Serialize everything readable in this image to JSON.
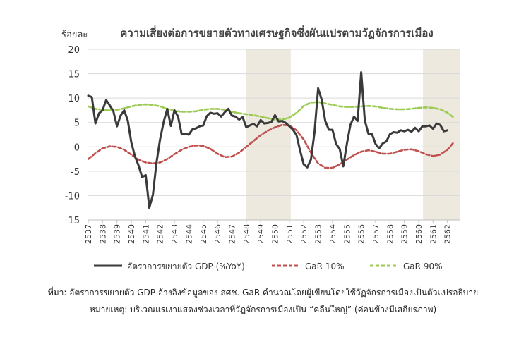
{
  "chart_data": {
    "type": "line",
    "title": "ความเสี่ยงต่อการขยายตัวทางเศรษฐกิจซึ่งผันแปรตามวัฏจักรการเมือง",
    "ylabel": "ร้อยละ",
    "xlabel": "",
    "ylim": [
      -15,
      20
    ],
    "yticks": [
      -15,
      -10,
      -5,
      0,
      5,
      10,
      15,
      20
    ],
    "xlim": [
      2537,
      2562.9
    ],
    "xticks": [
      "2537",
      "2538",
      "2539",
      "2540",
      "2541",
      "2542",
      "2543",
      "2544",
      "2545",
      "2546",
      "2547",
      "2548",
      "2549",
      "2550",
      "2551",
      "2552",
      "2553",
      "2554",
      "2555",
      "2556",
      "2557",
      "2558",
      "2559",
      "2560",
      "2561",
      "2562"
    ],
    "grid": "horizontal",
    "legend": "bottom",
    "shaded_periods": [
      [
        2548.0,
        2551.1
      ],
      [
        2560.3,
        2562.9
      ]
    ],
    "series": [
      {
        "name": "อัตราการขยายตัว GDP (%YoY)",
        "color": "#3a3a3a",
        "style": "solid",
        "x": [
          2537.0,
          2537.25,
          2537.5,
          2537.75,
          2538.0,
          2538.25,
          2538.5,
          2538.75,
          2539.0,
          2539.25,
          2539.5,
          2539.75,
          2540.0,
          2540.25,
          2540.5,
          2540.75,
          2541.0,
          2541.25,
          2541.5,
          2541.75,
          2542.0,
          2542.25,
          2542.5,
          2542.75,
          2543.0,
          2543.25,
          2543.5,
          2543.75,
          2544.0,
          2544.25,
          2544.5,
          2544.75,
          2545.0,
          2545.25,
          2545.5,
          2545.75,
          2546.0,
          2546.25,
          2546.5,
          2546.75,
          2547.0,
          2547.25,
          2547.5,
          2547.75,
          2548.0,
          2548.25,
          2548.5,
          2548.75,
          2549.0,
          2549.25,
          2549.5,
          2549.75,
          2550.0,
          2550.25,
          2550.5,
          2550.75,
          2551.0,
          2551.25,
          2551.5,
          2551.75,
          2552.0,
          2552.25,
          2552.5,
          2552.75,
          2553.0,
          2553.25,
          2553.5,
          2553.75,
          2554.0,
          2554.25,
          2554.5,
          2554.75,
          2555.0,
          2555.25,
          2555.5,
          2555.75,
          2556.0,
          2556.25,
          2556.5,
          2556.75,
          2557.0,
          2557.25,
          2557.5,
          2557.75,
          2558.0,
          2558.25,
          2558.5,
          2558.75,
          2559.0,
          2559.25,
          2559.5,
          2559.75,
          2560.0,
          2560.25,
          2560.5,
          2560.75,
          2561.0,
          2561.25,
          2561.5,
          2561.75,
          2562.0
        ],
        "y": [
          10.5,
          10.2,
          4.8,
          6.9,
          7.5,
          9.6,
          8.5,
          7.3,
          4.2,
          6.4,
          7.5,
          5.4,
          0.9,
          -1.9,
          -3.8,
          -6.2,
          -5.8,
          -12.5,
          -9.8,
          -3.2,
          1.5,
          5.1,
          7.8,
          4.3,
          7.5,
          6.2,
          2.6,
          2.7,
          2.5,
          3.6,
          3.8,
          4.2,
          4.4,
          6.3,
          7.0,
          6.8,
          6.9,
          6.2,
          7.1,
          7.8,
          6.4,
          6.2,
          5.6,
          6.1,
          4.0,
          4.4,
          4.7,
          4.2,
          5.5,
          4.8,
          4.9,
          5.1,
          6.5,
          5.2,
          5.3,
          4.9,
          4.2,
          3.5,
          2.4,
          -0.8,
          -3.6,
          -4.2,
          -2.6,
          3.0,
          12.0,
          9.7,
          5.3,
          3.5,
          3.5,
          0.6,
          -0.4,
          -4.0,
          0.6,
          4.5,
          6.2,
          5.3,
          15.3,
          5.4,
          2.7,
          2.6,
          0.6,
          -0.3,
          0.7,
          1.1,
          2.6,
          3.0,
          2.9,
          3.4,
          3.2,
          3.5,
          3.1,
          3.9,
          3.2,
          4.2,
          4.2,
          4.4,
          3.7,
          4.8,
          4.5,
          3.2,
          3.4
        ]
      },
      {
        "name": "GaR 10%",
        "color": "#c0504d",
        "style": "dashed",
        "x": [
          2537.0,
          2537.5,
          2538.0,
          2538.5,
          2539.0,
          2539.5,
          2540.0,
          2540.5,
          2541.0,
          2541.5,
          2542.0,
          2542.5,
          2543.0,
          2543.5,
          2544.0,
          2544.5,
          2545.0,
          2545.5,
          2546.0,
          2546.5,
          2547.0,
          2547.5,
          2548.0,
          2548.5,
          2549.0,
          2549.5,
          2550.0,
          2550.5,
          2551.0,
          2551.5,
          2552.0,
          2552.5,
          2553.0,
          2553.5,
          2554.0,
          2554.5,
          2555.0,
          2555.5,
          2556.0,
          2556.5,
          2557.0,
          2557.5,
          2558.0,
          2558.5,
          2559.0,
          2559.5,
          2560.0,
          2560.5,
          2561.0,
          2561.5,
          2562.0,
          2562.4
        ],
        "y": [
          -2.5,
          -1.3,
          -0.3,
          0.1,
          0.0,
          -0.6,
          -1.6,
          -2.6,
          -3.2,
          -3.4,
          -3.2,
          -2.5,
          -1.5,
          -0.6,
          0.0,
          0.3,
          0.2,
          -0.4,
          -1.4,
          -2.1,
          -2.0,
          -1.2,
          0.0,
          1.2,
          2.4,
          3.3,
          4.0,
          4.5,
          4.4,
          3.4,
          1.5,
          -1.2,
          -3.4,
          -4.3,
          -4.3,
          -3.6,
          -2.6,
          -1.7,
          -1.0,
          -0.7,
          -1.0,
          -1.4,
          -1.4,
          -1.0,
          -0.6,
          -0.5,
          -0.9,
          -1.5,
          -1.9,
          -1.6,
          -0.6,
          0.8
        ]
      },
      {
        "name": "GaR 90%",
        "color": "#9bcb52",
        "style": "dashed",
        "x": [
          2537.0,
          2537.5,
          2538.0,
          2538.5,
          2539.0,
          2539.5,
          2540.0,
          2540.5,
          2541.0,
          2541.5,
          2542.0,
          2542.5,
          2543.0,
          2543.5,
          2544.0,
          2544.5,
          2545.0,
          2545.5,
          2546.0,
          2546.5,
          2547.0,
          2547.5,
          2548.0,
          2548.5,
          2549.0,
          2549.5,
          2550.0,
          2550.5,
          2551.0,
          2551.5,
          2552.0,
          2552.5,
          2553.0,
          2553.5,
          2554.0,
          2554.5,
          2555.0,
          2555.5,
          2556.0,
          2556.5,
          2557.0,
          2557.5,
          2558.0,
          2558.5,
          2559.0,
          2559.5,
          2560.0,
          2560.5,
          2561.0,
          2561.5,
          2562.0,
          2562.4
        ],
        "y": [
          8.3,
          7.8,
          7.6,
          7.5,
          7.6,
          7.9,
          8.3,
          8.6,
          8.7,
          8.6,
          8.3,
          7.8,
          7.4,
          7.2,
          7.2,
          7.3,
          7.6,
          7.8,
          7.8,
          7.6,
          7.2,
          6.9,
          6.7,
          6.5,
          6.2,
          5.9,
          5.6,
          5.6,
          6.0,
          7.0,
          8.4,
          9.1,
          9.2,
          8.9,
          8.6,
          8.3,
          8.2,
          8.2,
          8.3,
          8.4,
          8.3,
          8.0,
          7.8,
          7.7,
          7.7,
          7.8,
          8.0,
          8.1,
          8.0,
          7.7,
          7.0,
          6.1
        ]
      }
    ]
  },
  "footer": {
    "source": "ที่มา: อัตราการขยายตัว GDP อ้างอิงข้อมูลของ สศช.  GaR คำนวณโดยผู้เขียนโดยใช้วัฏจักรการเมืองเป็นตัวแปรอธิบาย",
    "note": "หมายเหตุ: บริเวณแรเงาแสดงช่วงเวลาที่วัฏจักรการเมืองเป็น “คลื่นใหญ่” (ค่อนข้างมีเสถียรภาพ)"
  }
}
